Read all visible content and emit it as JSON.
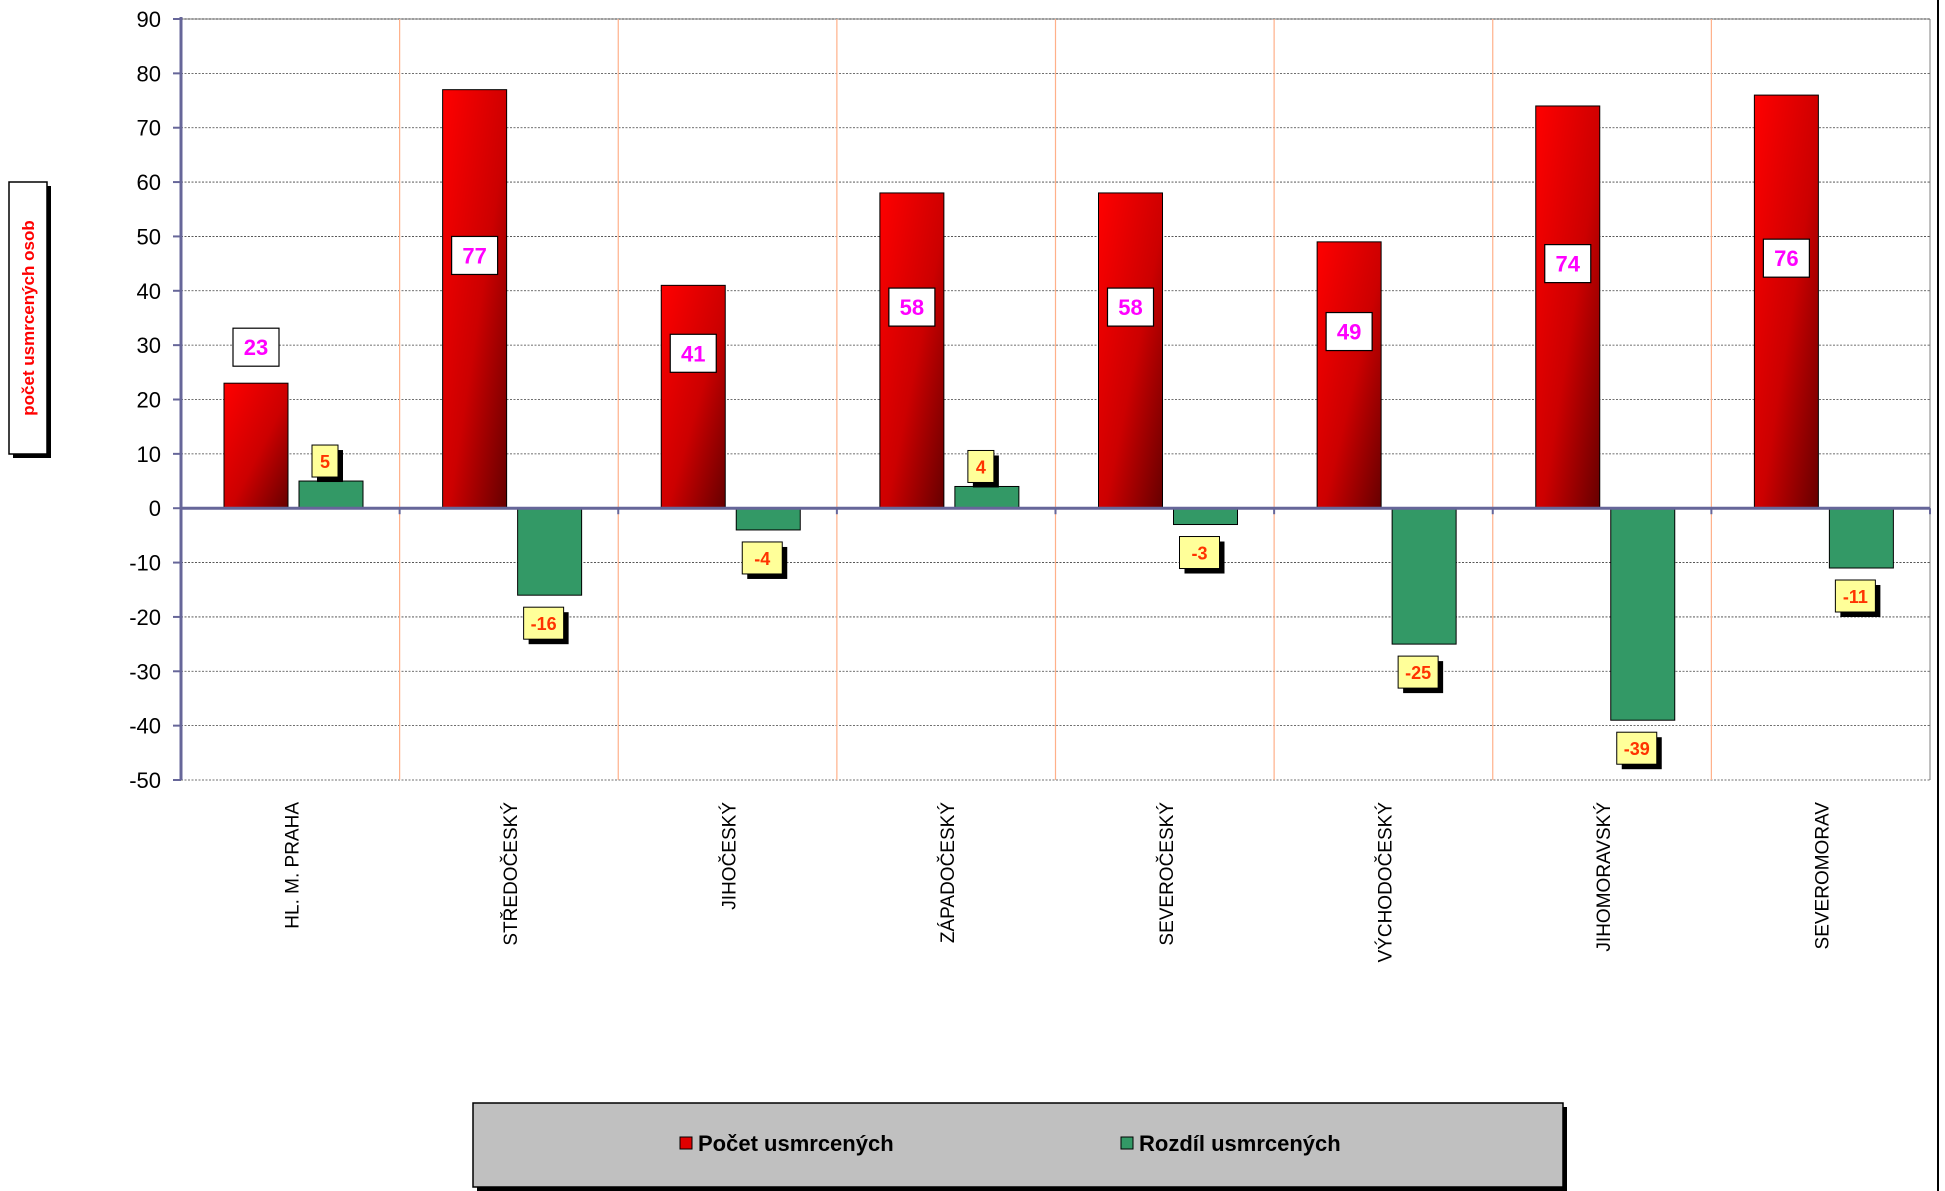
{
  "chart_data": {
    "type": "bar",
    "ylabel": "počet usmrcených osob",
    "xlabel": "",
    "title": "",
    "categories": [
      "HL. M. PRAHA",
      "STŘEDOČESKÝ",
      "JIHOČESKÝ",
      "ZÁPADOČESKÝ",
      "SEVEROČESKÝ",
      "VÝCHODOČESKÝ",
      "JIHOMORAVSKÝ",
      "SEVEROMORAV"
    ],
    "series": [
      {
        "name": "Počet usmrcených",
        "color": "#e00000",
        "values": [
          23,
          77,
          41,
          58,
          58,
          49,
          74,
          76
        ]
      },
      {
        "name": "Rozdíl usmrcených",
        "color": "#339966",
        "values": [
          5,
          -16,
          -4,
          4,
          -3,
          -25,
          -39,
          -11
        ]
      }
    ],
    "ylim": [
      -50,
      90
    ],
    "yticks": [
      90,
      80,
      70,
      60,
      50,
      40,
      30,
      20,
      10,
      0,
      -10,
      -20,
      -30,
      -40,
      -50
    ],
    "grid": true,
    "legend_position": "bottom",
    "legend_background": "#c0c0c0",
    "label_box_colors": {
      "series_a": "#ffffff",
      "series_b": "#ffff99"
    }
  }
}
